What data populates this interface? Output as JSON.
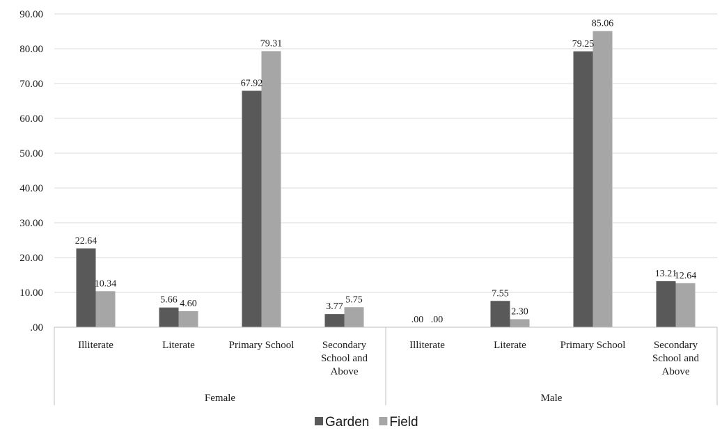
{
  "chart_data": {
    "type": "bar",
    "groups": [
      {
        "label": "Female",
        "categories": [
          "Illiterate",
          "Literate",
          "Primary School",
          "Secondary School and Above"
        ]
      },
      {
        "label": "Male",
        "categories": [
          "Illiterate",
          "Literate",
          "Primary School",
          "Secondary School and Above"
        ]
      }
    ],
    "series": [
      {
        "name": "Garden",
        "color": "#595959",
        "values": [
          22.64,
          5.66,
          67.92,
          3.77,
          0.0,
          7.55,
          79.25,
          13.21
        ],
        "labels": [
          "22.64",
          "5.66",
          "67.92",
          "3.77",
          ".00",
          "7.55",
          "79.25",
          "13.21"
        ]
      },
      {
        "name": "Field",
        "color": "#a6a6a6",
        "values": [
          10.34,
          4.6,
          79.31,
          5.75,
          0.0,
          2.3,
          85.06,
          12.64
        ],
        "labels": [
          "10.34",
          "4.60",
          "79.31",
          "5.75",
          ".00",
          "2.30",
          "85.06",
          "12.64"
        ]
      }
    ],
    "ylim": [
      0,
      90
    ],
    "yticks": [
      0,
      10,
      20,
      30,
      40,
      50,
      60,
      70,
      80,
      90
    ],
    "ytick_labels": [
      ".00",
      "10.00",
      "20.00",
      "30.00",
      "40.00",
      "50.00",
      "60.00",
      "70.00",
      "80.00",
      "90.00"
    ],
    "grid": true,
    "legend_position": "bottom"
  }
}
